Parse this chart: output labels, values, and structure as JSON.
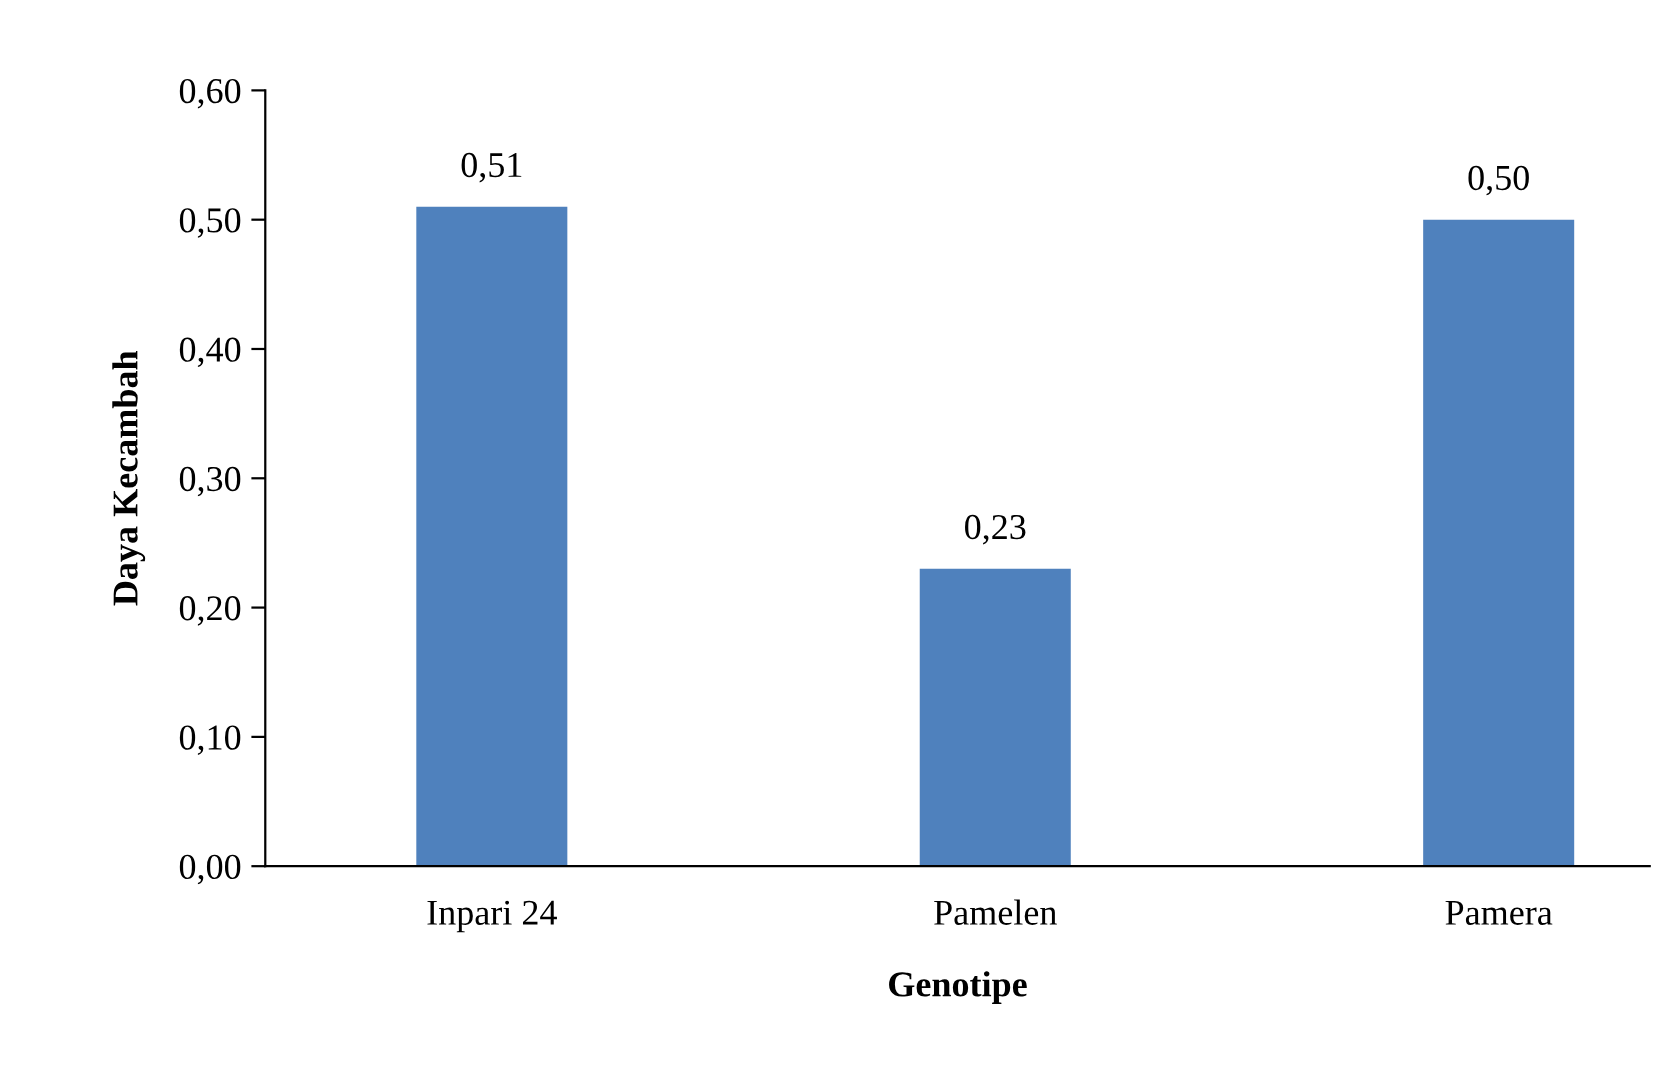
{
  "chart_data": {
    "type": "bar",
    "xlabel": "Genotipe",
    "ylabel": "Daya Kecambah",
    "categories": [
      "Inpari 24",
      "Pamelen",
      "Pamera"
    ],
    "values": [
      0.51,
      0.23,
      0.5
    ],
    "value_labels": [
      "0,51",
      "0,23",
      "0,50"
    ],
    "color": "#4f81bd",
    "ylim": [
      0,
      0.6
    ],
    "yticks": [
      {
        "value": 0,
        "label": "0,00"
      },
      {
        "value": 0.1,
        "label": "0,10"
      },
      {
        "value": 0.2,
        "label": "0,20"
      },
      {
        "value": 0.3,
        "label": "0,30"
      },
      {
        "value": 0.4,
        "label": "0,40"
      },
      {
        "value": 0.5,
        "label": "0,50"
      },
      {
        "value": 0.6,
        "label": "0,60"
      }
    ],
    "grid": false,
    "legend": false
  }
}
